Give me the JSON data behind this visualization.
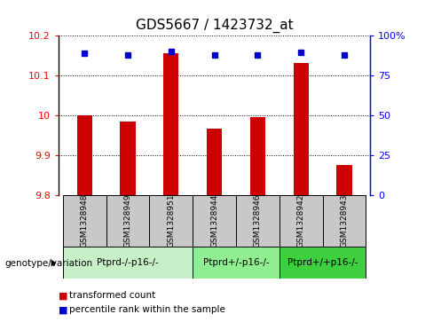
{
  "title": "GDS5667 / 1423732_at",
  "samples": [
    "GSM1328948",
    "GSM1328949",
    "GSM1328951",
    "GSM1328944",
    "GSM1328946",
    "GSM1328942",
    "GSM1328943"
  ],
  "red_values": [
    10.0,
    9.985,
    10.155,
    9.965,
    9.995,
    10.13,
    9.875
  ],
  "blue_values": [
    10.155,
    10.15,
    10.16,
    10.15,
    10.15,
    10.157,
    10.15
  ],
  "ylim_left": [
    9.8,
    10.2
  ],
  "ylim_right": [
    0,
    100
  ],
  "yticks_left": [
    9.8,
    9.9,
    10.0,
    10.1,
    10.2
  ],
  "yticks_right": [
    0,
    25,
    50,
    75,
    100
  ],
  "ytick_labels_left": [
    "9.8",
    "9.9",
    "10",
    "10.1",
    "10.2"
  ],
  "ytick_labels_right": [
    "0",
    "25",
    "50",
    "75",
    "100%"
  ],
  "groups": [
    {
      "label": "Ptprd-/-p16-/-",
      "indices": [
        0,
        1,
        2
      ],
      "color": "#c8f0c8"
    },
    {
      "label": "Ptprd+/-p16-/-",
      "indices": [
        3,
        4
      ],
      "color": "#90ee90"
    },
    {
      "label": "Ptprd+/+p16-/-",
      "indices": [
        5,
        6
      ],
      "color": "#3ecf3e"
    }
  ],
  "bar_color": "#cc0000",
  "dot_color": "#0000cc",
  "gray_color": "#c8c8c8",
  "genotype_label": "genotype/variation",
  "legend_red": "transformed count",
  "legend_blue": "percentile rank within the sample",
  "title_fontsize": 11,
  "bar_width": 0.35
}
